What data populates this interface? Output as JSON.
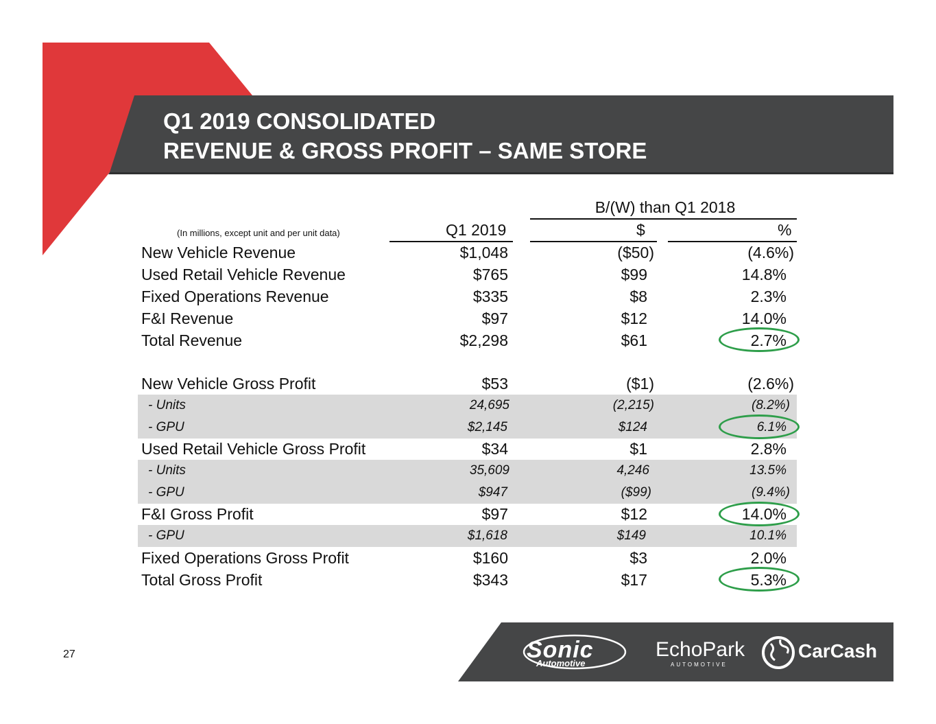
{
  "slide": {
    "title_line1": "Q1 2019 CONSOLIDATED",
    "title_line2": "REVENUE & GROSS PROFIT – SAME STORE",
    "page_number": "27",
    "colors": {
      "accent_red": "#e0383a",
      "header_bar": "#454647",
      "row_shade": "#d9d9d9",
      "highlight_ring": "#2e9e4a"
    }
  },
  "table": {
    "comparison_header": "B/(W) than Q1 2018",
    "units_note": "(In millions, except unit and per unit data)",
    "col_q1": "Q1 2019",
    "col_dollar": "$",
    "col_pct": "%",
    "rows": [
      {
        "label": "New Vehicle Revenue",
        "q1": "$1,048",
        "dollar": "($50)",
        "pct": "(4.6%)"
      },
      {
        "label": "Used Retail Vehicle Revenue",
        "q1": "$765",
        "dollar": "$99",
        "pct": "14.8%"
      },
      {
        "label": "Fixed Operations Revenue",
        "q1": "$335",
        "dollar": "$8",
        "pct": "2.3%"
      },
      {
        "label": "F&I Revenue",
        "q1": "$97",
        "dollar": "$12",
        "pct": "14.0%"
      },
      {
        "label": "Total Revenue",
        "q1": "$2,298",
        "dollar": "$61",
        "pct": "2.7%"
      },
      {
        "label": "New Vehicle Gross Profit",
        "q1": "$53",
        "dollar": "($1)",
        "pct": "(2.6%)"
      },
      {
        "label": "- Units",
        "q1": "24,695",
        "dollar": "(2,215)",
        "pct": "(8.2%)"
      },
      {
        "label": "- GPU",
        "q1": "$2,145",
        "dollar": "$124",
        "pct": "6.1%"
      },
      {
        "label": "Used Retail Vehicle Gross Profit",
        "q1": "$34",
        "dollar": "$1",
        "pct": "2.8%"
      },
      {
        "label": "- Units",
        "q1": "35,609",
        "dollar": "4,246",
        "pct": "13.5%"
      },
      {
        "label": "- GPU",
        "q1": "$947",
        "dollar": "($99)",
        "pct": "(9.4%)"
      },
      {
        "label": "F&I Gross Profit",
        "q1": "$97",
        "dollar": "$12",
        "pct": "14.0%"
      },
      {
        "label": "- GPU",
        "q1": "$1,618",
        "dollar": "$149",
        "pct": "10.1%"
      },
      {
        "label": "Fixed Operations Gross Profit",
        "q1": "$160",
        "dollar": "$3",
        "pct": "2.0%"
      },
      {
        "label": "Total Gross Profit",
        "q1": "$343",
        "dollar": "$17",
        "pct": "5.3%"
      }
    ]
  },
  "logos": {
    "sonic": "Sonic",
    "sonic_sub": "Automotive",
    "echopark": "EchoPark",
    "echopark_sub": "AUTOMOTIVE",
    "carcash": "CarCash"
  }
}
